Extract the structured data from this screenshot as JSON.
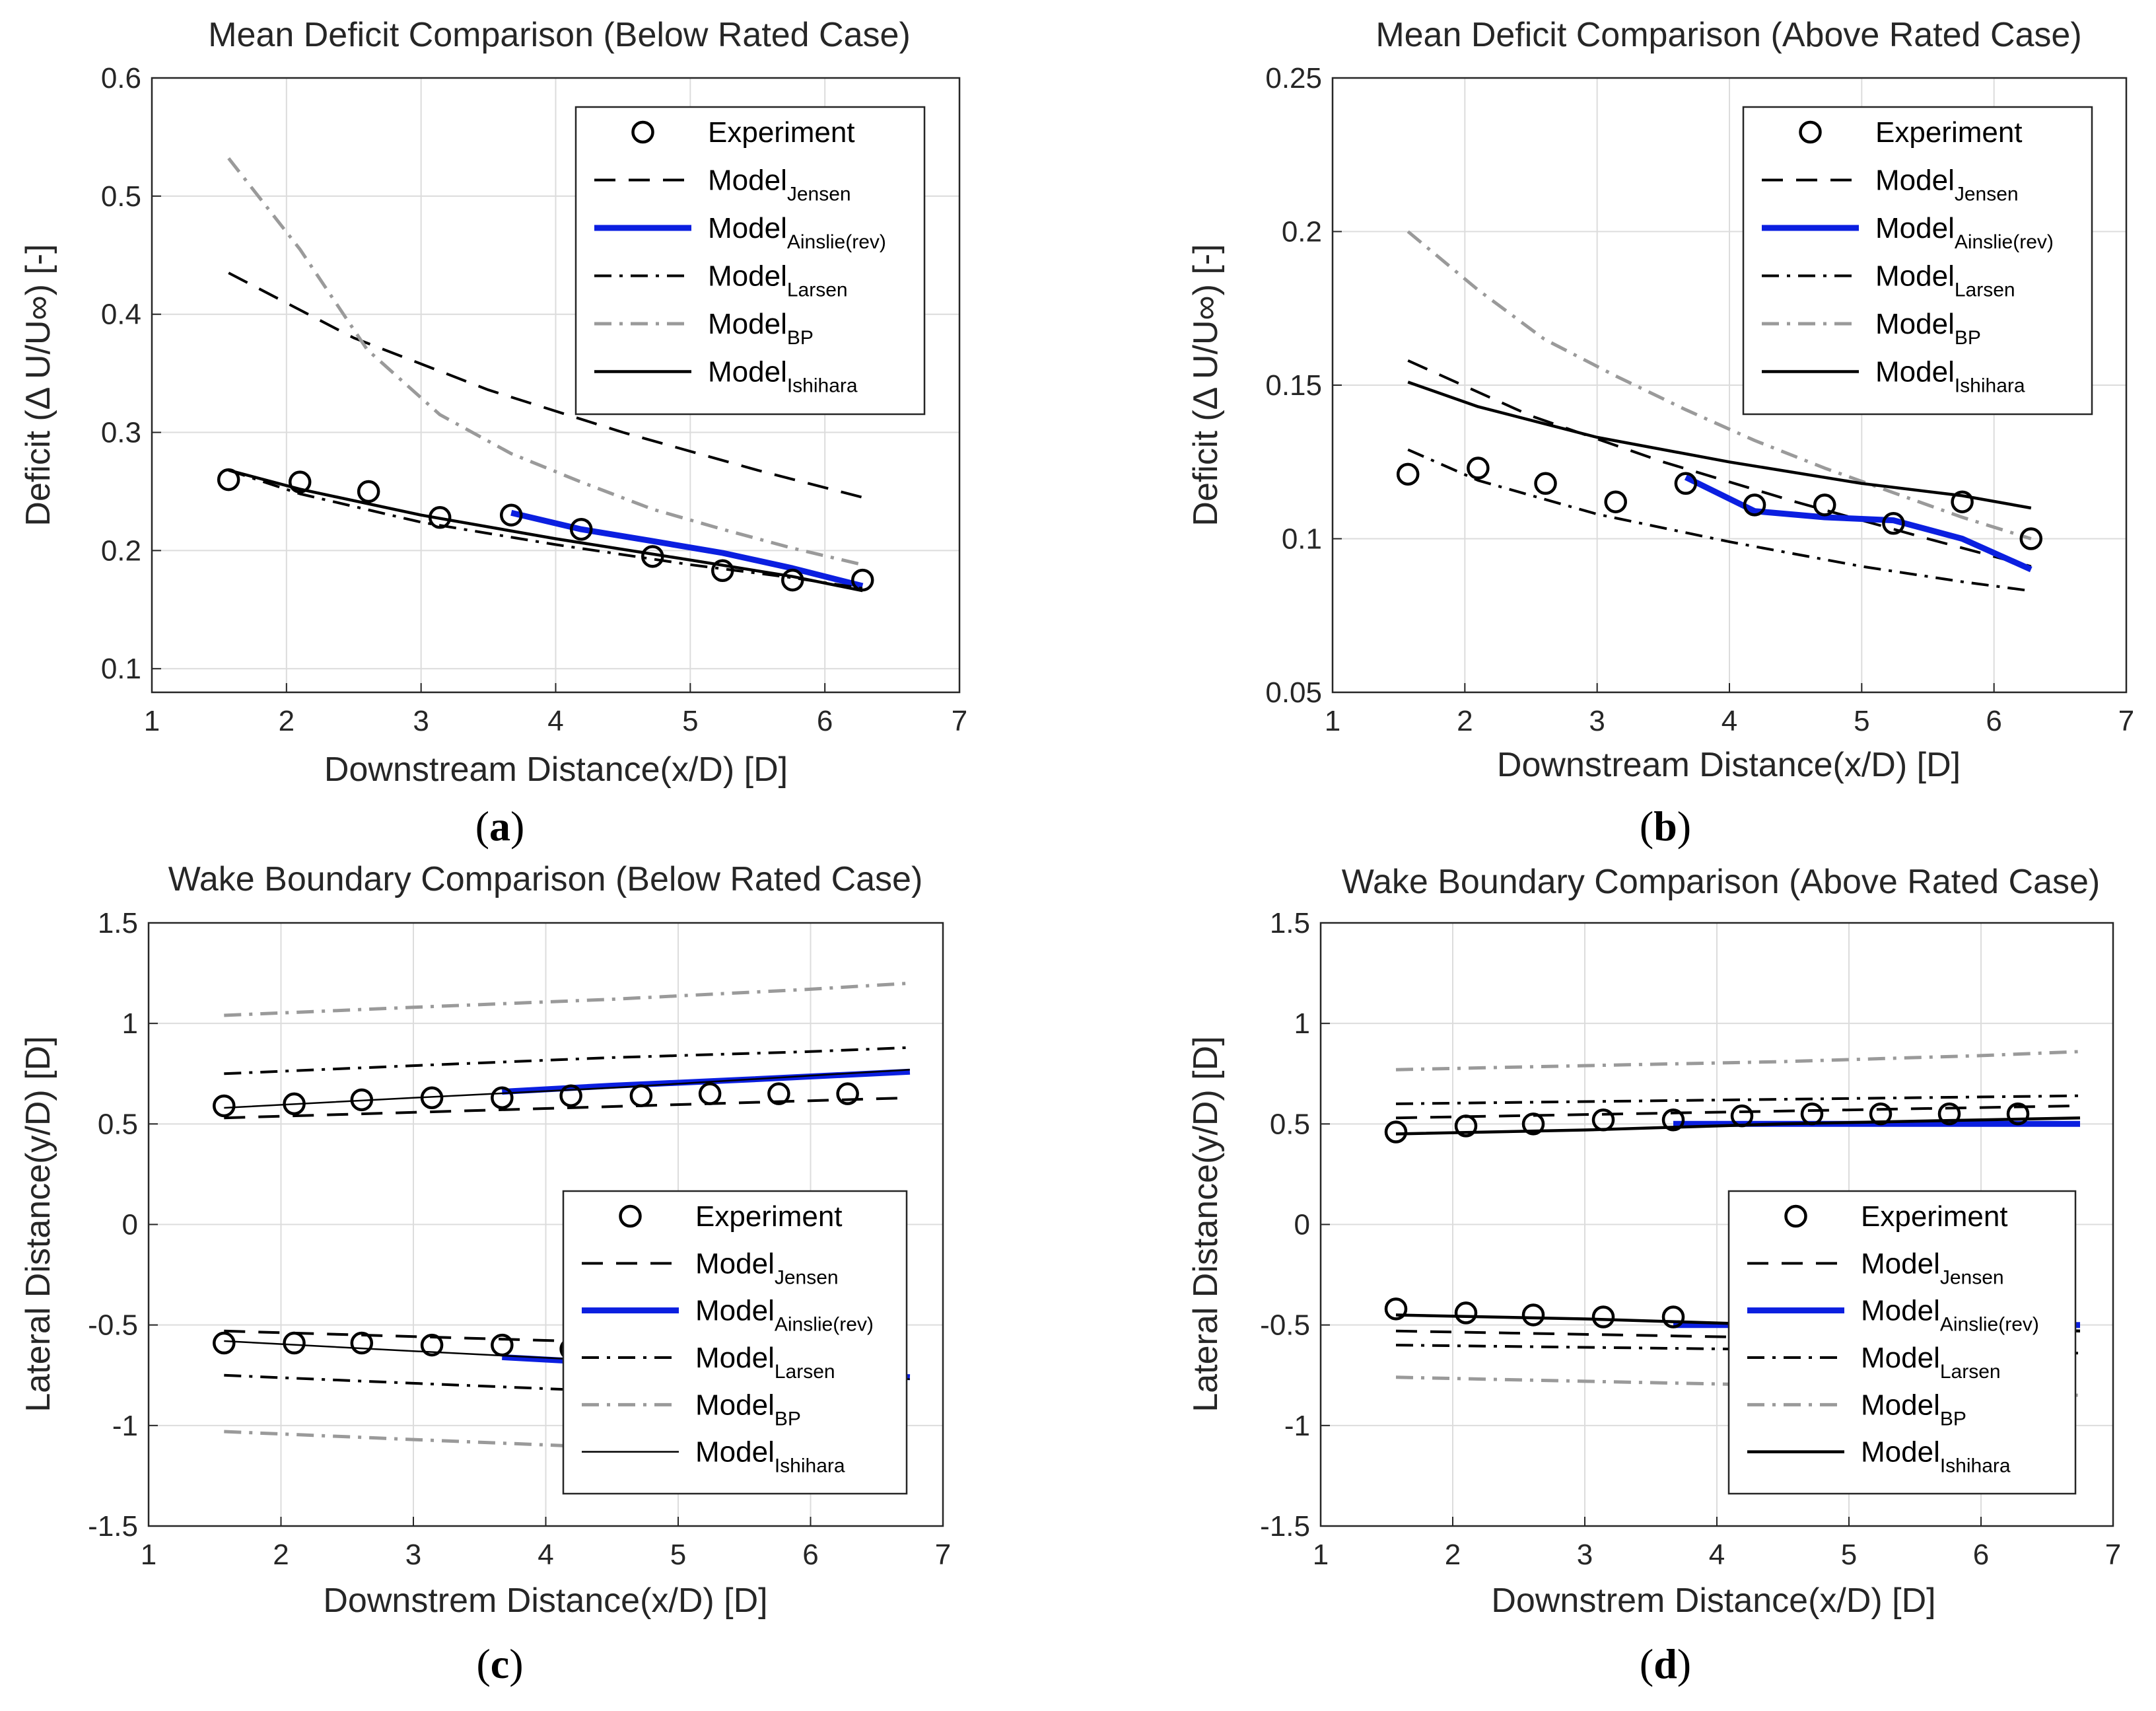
{
  "chart_data": [
    {
      "id": "a",
      "type": "line",
      "panel_label": "a",
      "title": "Mean Deficit Comparison (Below Rated Case)",
      "xlabel": "Downstream Distance(x/D) [D]",
      "ylabel": "Deficit (Δ U/U∞) [-]",
      "xlim": [
        1,
        7
      ],
      "ylim": [
        0.08,
        0.6
      ],
      "xticks": [
        "1",
        "2",
        "3",
        "4",
        "5",
        "6",
        "7"
      ],
      "yticks": [
        "0.1",
        "0.2",
        "0.3",
        "0.4",
        "0.5",
        "0.6"
      ],
      "grid": true,
      "legend_position": "top-right",
      "series": [
        {
          "name": "Experiment",
          "style": "circles",
          "x": [
            1.57,
            2.1,
            2.61,
            3.14,
            3.67,
            4.19,
            4.72,
            5.24,
            5.76,
            6.28
          ],
          "y": [
            0.26,
            0.258,
            0.25,
            0.228,
            0.23,
            0.218,
            0.195,
            0.183,
            0.175,
            0.175
          ]
        },
        {
          "name": "Model",
          "sub": "Jensen",
          "style": "dash",
          "x": [
            1.57,
            2.5,
            3.5,
            4.5,
            5.5,
            6.28
          ],
          "y": [
            0.435,
            0.38,
            0.336,
            0.3,
            0.268,
            0.245
          ]
        },
        {
          "name": "Model",
          "sub": "Ainslie(rev)",
          "style": "blue",
          "x": [
            3.67,
            4.19,
            4.72,
            5.24,
            5.76,
            6.28
          ],
          "y": [
            0.232,
            0.218,
            0.208,
            0.198,
            0.185,
            0.17
          ]
        },
        {
          "name": "Model",
          "sub": "Larsen",
          "style": "dashdot",
          "x": [
            1.57,
            2.1,
            3.0,
            4.0,
            5.0,
            5.76,
            6.28
          ],
          "y": [
            0.268,
            0.248,
            0.224,
            0.205,
            0.188,
            0.177,
            0.168
          ]
        },
        {
          "name": "Model",
          "sub": "BP",
          "style": "gray-dashdot",
          "x": [
            1.57,
            2.1,
            2.6,
            3.14,
            3.67,
            4.19,
            4.72,
            5.24,
            5.76,
            6.28
          ],
          "y": [
            0.532,
            0.455,
            0.37,
            0.315,
            0.282,
            0.258,
            0.235,
            0.218,
            0.202,
            0.188
          ]
        },
        {
          "name": "Model",
          "sub": "Ishihara",
          "style": "solid",
          "x": [
            1.57,
            2.1,
            3.0,
            4.0,
            5.0,
            5.76,
            6.28
          ],
          "y": [
            0.268,
            0.252,
            0.23,
            0.21,
            0.192,
            0.178,
            0.166
          ]
        }
      ]
    },
    {
      "id": "b",
      "type": "line",
      "panel_label": "b",
      "title": "Mean Deficit Comparison (Above Rated Case)",
      "xlabel": "Downstream Distance(x/D) [D]",
      "ylabel": "Deficit (Δ U/U∞) [-]",
      "xlim": [
        1,
        7
      ],
      "ylim": [
        0.05,
        0.25
      ],
      "xticks": [
        "1",
        "2",
        "3",
        "4",
        "5",
        "6",
        "7"
      ],
      "yticks": [
        "0.05",
        "0.1",
        "0.15",
        "0.2",
        "0.25"
      ],
      "grid": true,
      "legend_position": "top-right",
      "series": [
        {
          "name": "Experiment",
          "style": "circles",
          "x": [
            1.57,
            2.1,
            2.61,
            3.14,
            3.67,
            4.19,
            4.72,
            5.24,
            5.76,
            6.28
          ],
          "y": [
            0.121,
            0.123,
            0.118,
            0.112,
            0.118,
            0.111,
            0.111,
            0.105,
            0.112,
            0.1
          ]
        },
        {
          "name": "Model",
          "sub": "Jensen",
          "style": "dash",
          "x": [
            1.57,
            2.5,
            3.5,
            4.5,
            5.5,
            6.28
          ],
          "y": [
            0.158,
            0.14,
            0.125,
            0.112,
            0.1,
            0.091
          ]
        },
        {
          "name": "Model",
          "sub": "Ainslie(rev)",
          "style": "blue",
          "x": [
            3.67,
            4.19,
            4.72,
            5.24,
            5.76,
            6.28
          ],
          "y": [
            0.12,
            0.109,
            0.107,
            0.106,
            0.1,
            0.09
          ]
        },
        {
          "name": "Model",
          "sub": "Larsen",
          "style": "dashdot",
          "x": [
            1.57,
            2.1,
            3.0,
            4.0,
            5.0,
            5.76,
            6.28
          ],
          "y": [
            0.129,
            0.119,
            0.108,
            0.099,
            0.091,
            0.086,
            0.083
          ]
        },
        {
          "name": "Model",
          "sub": "BP",
          "style": "gray-dashdot",
          "x": [
            1.57,
            2.1,
            2.6,
            3.14,
            3.67,
            4.19,
            4.72,
            5.24,
            5.76,
            6.28
          ],
          "y": [
            0.2,
            0.181,
            0.165,
            0.153,
            0.142,
            0.132,
            0.123,
            0.115,
            0.107,
            0.1
          ]
        },
        {
          "name": "Model",
          "sub": "Ishihara",
          "style": "solid",
          "x": [
            1.57,
            2.1,
            3.0,
            4.0,
            5.0,
            5.76,
            6.28
          ],
          "y": [
            0.151,
            0.143,
            0.133,
            0.125,
            0.118,
            0.114,
            0.11
          ]
        }
      ]
    },
    {
      "id": "c",
      "type": "line",
      "panel_label": "c",
      "title": "Wake Boundary Comparison (Below Rated Case)",
      "xlabel": "Downstrem Distance(x/D) [D]",
      "ylabel": "Lateral Distance(y/D) [D]",
      "xlim": [
        1,
        7
      ],
      "ylim": [
        -1.5,
        1.5
      ],
      "xticks": [
        "1",
        "2",
        "3",
        "4",
        "5",
        "6",
        "7"
      ],
      "yticks": [
        "-1.5",
        "-1",
        "-0.5",
        "0",
        "0.5",
        "1",
        "1.5"
      ],
      "grid": true,
      "legend_position": "bottom-right",
      "series": [
        {
          "name": "Experiment",
          "style": "circles",
          "x": [
            1.57,
            2.1,
            2.61,
            3.14,
            3.67,
            4.19,
            4.72,
            5.24,
            5.76,
            6.28,
            1.57,
            2.1,
            2.61,
            3.14,
            3.67,
            4.19,
            4.72,
            5.24,
            5.76,
            6.28
          ],
          "y": [
            0.59,
            0.6,
            0.62,
            0.63,
            0.63,
            0.64,
            0.64,
            0.65,
            0.65,
            0.65,
            -0.59,
            -0.59,
            -0.59,
            -0.6,
            -0.6,
            -0.62,
            -0.63,
            -0.65,
            -0.65,
            -0.65
          ]
        },
        {
          "name": "Model",
          "sub": "Jensen",
          "style": "dash",
          "x": [
            1.57,
            6.75,
            null,
            1.57,
            6.75
          ],
          "y": [
            0.53,
            0.63,
            null,
            -0.53,
            -0.63
          ]
        },
        {
          "name": "Model",
          "sub": "Ainslie(rev)",
          "style": "blue",
          "x": [
            3.67,
            4.5,
            5.5,
            6.75,
            null,
            3.67,
            4.5,
            5.5,
            6.75
          ],
          "y": [
            0.66,
            0.69,
            0.72,
            0.76,
            null,
            -0.66,
            -0.69,
            -0.72,
            -0.76
          ]
        },
        {
          "name": "Model",
          "sub": "Larsen",
          "style": "dashdot",
          "x": [
            1.57,
            3.0,
            4.5,
            6.0,
            6.75,
            null,
            1.57,
            3.0,
            4.5,
            6.0,
            6.75
          ],
          "y": [
            0.75,
            0.79,
            0.83,
            0.86,
            0.88,
            null,
            -0.75,
            -0.79,
            -0.83,
            -0.86,
            -0.88
          ]
        },
        {
          "name": "Model",
          "sub": "BP",
          "style": "gray-dashdot",
          "x": [
            1.57,
            3.0,
            4.5,
            6.0,
            6.75,
            null,
            1.57,
            3.0,
            4.5,
            6.0,
            6.75
          ],
          "y": [
            1.04,
            1.08,
            1.12,
            1.17,
            1.2,
            null,
            -1.03,
            -1.07,
            -1.11,
            -1.15,
            -1.18
          ]
        },
        {
          "name": "Model",
          "sub": "Ishihara",
          "style": "solid-thin",
          "x": [
            1.57,
            3.0,
            4.5,
            6.0,
            6.75,
            null,
            1.57,
            3.0,
            4.5,
            6.0,
            6.75
          ],
          "y": [
            0.58,
            0.63,
            0.68,
            0.74,
            0.77,
            null,
            -0.58,
            -0.63,
            -0.68,
            -0.74,
            -0.77
          ]
        }
      ]
    },
    {
      "id": "d",
      "type": "line",
      "panel_label": "d",
      "title": "Wake Boundary Comparison (Above Rated Case)",
      "xlabel": "Downstrem Distance(x/D) [D]",
      "ylabel": "Lateral Distance(y/D) [D]",
      "xlim": [
        1,
        7
      ],
      "ylim": [
        -1.5,
        1.5
      ],
      "xticks": [
        "1",
        "2",
        "3",
        "4",
        "5",
        "6",
        "7"
      ],
      "yticks": [
        "-1.5",
        "-1",
        "-0.5",
        "0",
        "0.5",
        "1",
        "1.5"
      ],
      "grid": true,
      "legend_position": "bottom-right",
      "series": [
        {
          "name": "Experiment",
          "style": "circles",
          "x": [
            1.57,
            2.1,
            2.61,
            3.14,
            3.67,
            4.19,
            4.72,
            5.24,
            5.76,
            6.28,
            1.57,
            2.1,
            2.61,
            3.14,
            3.67,
            4.19,
            4.72,
            5.24,
            5.76,
            6.28
          ],
          "y": [
            0.46,
            0.49,
            0.5,
            0.52,
            0.52,
            0.54,
            0.55,
            0.55,
            0.55,
            0.55,
            -0.42,
            -0.44,
            -0.45,
            -0.46,
            -0.46,
            -0.47,
            -0.48,
            -0.5,
            -0.5,
            -0.5
          ]
        },
        {
          "name": "Model",
          "sub": "Jensen",
          "style": "dash",
          "x": [
            1.57,
            6.75,
            null,
            1.57,
            6.75
          ],
          "y": [
            0.53,
            0.59,
            null,
            -0.53,
            -0.59
          ]
        },
        {
          "name": "Model",
          "sub": "Ainslie(rev)",
          "style": "blue",
          "x": [
            3.67,
            6.75,
            null,
            3.67,
            6.75
          ],
          "y": [
            0.5,
            0.5,
            null,
            -0.5,
            -0.5
          ]
        },
        {
          "name": "Model",
          "sub": "Larsen",
          "style": "dashdot",
          "x": [
            1.57,
            6.75,
            null,
            1.57,
            6.75
          ],
          "y": [
            0.6,
            0.64,
            null,
            -0.6,
            -0.64
          ]
        },
        {
          "name": "Model",
          "sub": "BP",
          "style": "gray-dashdot",
          "x": [
            1.57,
            3.0,
            4.5,
            6.0,
            6.75,
            null,
            1.57,
            3.0,
            4.5,
            6.0,
            6.75
          ],
          "y": [
            0.77,
            0.79,
            0.81,
            0.84,
            0.86,
            null,
            -0.76,
            -0.78,
            -0.8,
            -0.83,
            -0.85
          ]
        },
        {
          "name": "Model",
          "sub": "Ishihara",
          "style": "solid",
          "x": [
            1.57,
            3.0,
            4.5,
            6.0,
            6.75,
            null,
            1.57,
            3.0,
            4.5,
            6.0,
            6.75
          ],
          "y": [
            0.45,
            0.47,
            0.5,
            0.52,
            0.53,
            null,
            -0.45,
            -0.47,
            -0.5,
            -0.52,
            -0.53
          ]
        }
      ]
    }
  ]
}
